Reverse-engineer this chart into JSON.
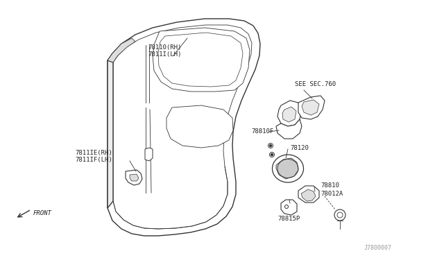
{
  "bg_color": "#ffffff",
  "fig_ref": "J7800007",
  "lc": "#333333",
  "lw_main": 1.0,
  "lw_thin": 0.6,
  "fs": 6.5,
  "labels": {
    "top_fender_1": "78110(RH)",
    "top_fender_2": "7811I(LH)",
    "mid_fender_1": "7811IE(RH)",
    "mid_fender_2": "7811IF(LH)",
    "fuel_door_upper": "78810F",
    "fuel_door_bolt": "78120",
    "fuel_door_main": "78810",
    "fuel_door_cap": "78012A",
    "fuel_door_hinge": "78815P",
    "see_sec": "SEE SEC.760",
    "front_arrow": "FRONT"
  }
}
